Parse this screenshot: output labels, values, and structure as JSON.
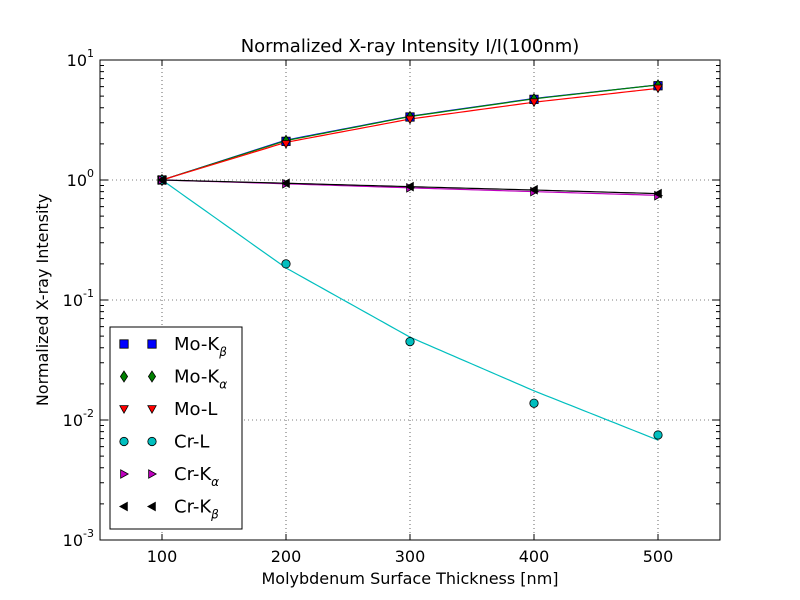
{
  "chart_data": {
    "type": "line",
    "title": "Normalized X-ray Intensity I/I(100nm)",
    "xlabel": "Molybdenum Surface Thickness [nm]",
    "ylabel": "Normalized X-ray Intensity",
    "xlim": [
      50,
      550
    ],
    "ylim": [
      0.001,
      10
    ],
    "yscale": "log",
    "grid": true,
    "legend_position": "lower-left",
    "x_ticks": [
      "100",
      "200",
      "300",
      "400",
      "500"
    ],
    "y_ticks": [
      {
        "base": "10",
        "exp": "-3"
      },
      {
        "base": "10",
        "exp": "-2"
      },
      {
        "base": "10",
        "exp": "-1"
      },
      {
        "base": "10",
        "exp": "0"
      },
      {
        "base": "10",
        "exp": "1"
      }
    ],
    "x": [
      100,
      200,
      300,
      400,
      500
    ],
    "series": [
      {
        "name": "Mo-K",
        "subscript": "β",
        "marker": "square",
        "color": "#0000ff",
        "points": [
          1.0,
          2.1,
          3.35,
          4.7,
          6.1
        ],
        "fit": [
          1.0,
          2.15,
          3.4,
          4.78,
          6.2
        ]
      },
      {
        "name": "Mo-K",
        "subscript": "α",
        "marker": "diamond",
        "color": "#008000",
        "points": [
          1.0,
          2.12,
          3.35,
          4.72,
          6.15
        ],
        "fit": [
          1.0,
          2.13,
          3.38,
          4.75,
          6.2
        ]
      },
      {
        "name": "Mo-L",
        "subscript": "",
        "marker": "triangle-down",
        "color": "#ff0000",
        "points": [
          1.0,
          2.0,
          3.2,
          4.45,
          5.8
        ],
        "fit": [
          1.0,
          2.06,
          3.22,
          4.45,
          5.8
        ]
      },
      {
        "name": "Cr-L",
        "subscript": "",
        "marker": "circle",
        "color": "#00bfbf",
        "points": [
          1.0,
          0.2,
          0.045,
          0.0138,
          0.0075
        ],
        "fit": [
          1.0,
          0.185,
          0.049,
          0.0175,
          0.0068
        ]
      },
      {
        "name": "Cr-K",
        "subscript": "α",
        "marker": "triangle-right",
        "color": "#bf00bf",
        "points": [
          1.0,
          0.93,
          0.86,
          0.8,
          0.74
        ],
        "fit": [
          1.0,
          0.93,
          0.86,
          0.8,
          0.745
        ]
      },
      {
        "name": "Cr-K",
        "subscript": "β",
        "marker": "triangle-left",
        "color": "#000000",
        "points": [
          1.0,
          0.94,
          0.88,
          0.83,
          0.77
        ],
        "fit": [
          1.0,
          0.94,
          0.88,
          0.825,
          0.77
        ]
      }
    ]
  }
}
